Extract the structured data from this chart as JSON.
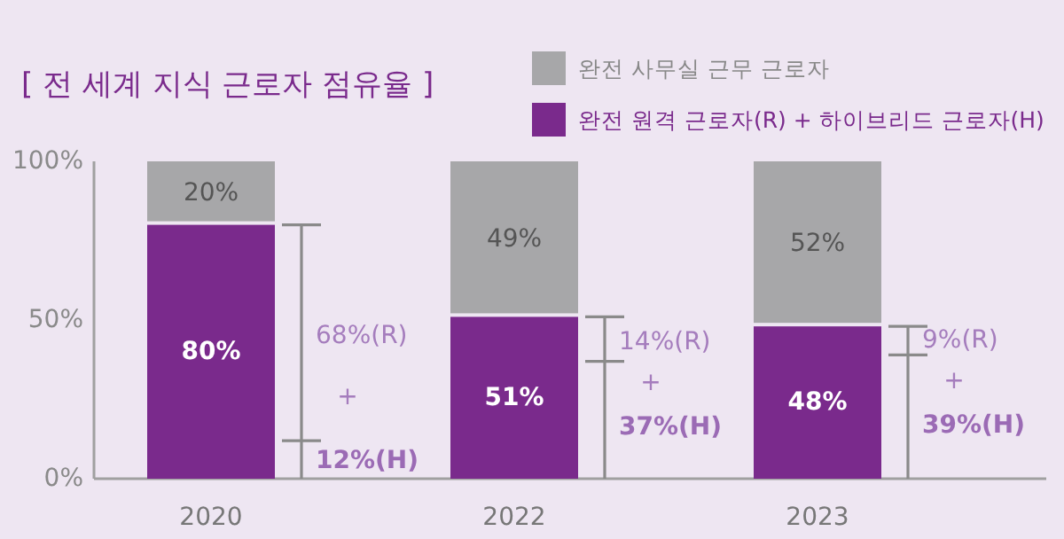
{
  "chart_data": {
    "type": "bar",
    "stacked": true,
    "title": "[ 전 세계 지식 근로자 점유율 ]",
    "categories": [
      "2020",
      "2022",
      "2023"
    ],
    "series": [
      {
        "name": "완전 원격 근로자(R) + 하이브리드 근로자(H)",
        "color": "#7a2a8c",
        "values": [
          80,
          51,
          48
        ],
        "value_labels": [
          "80%",
          "51%",
          "48%"
        ]
      },
      {
        "name": "완전 사무실 근무 근로자",
        "color": "#a7a7a9",
        "values": [
          20,
          49,
          52
        ],
        "value_labels": [
          "20%",
          "49%",
          "52%"
        ]
      }
    ],
    "ylim": [
      0,
      100
    ],
    "yticks": [
      {
        "value": 0,
        "label": "0%"
      },
      {
        "value": 50,
        "label": "50%"
      },
      {
        "value": 100,
        "label": "100%"
      }
    ],
    "legend": "top right",
    "grid": false,
    "annotations": [
      "68%(R)",
      "+",
      "12%(H)",
      "14%(R)",
      "+",
      "37%(H)",
      "9%(R)",
      "+",
      "39%(H)"
    ]
  }
}
